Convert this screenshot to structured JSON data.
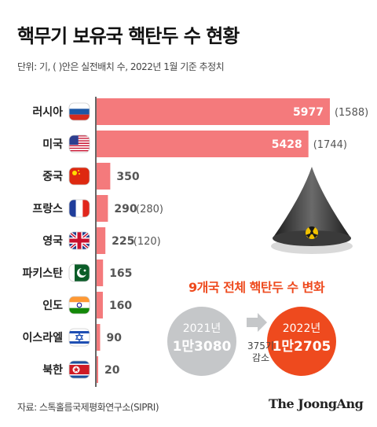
{
  "title": "핵무기 보유국 핵탄두 수 현황",
  "subtitle": "단위: 기, ( )안은 실전배치 수, 2022년 1월 기준 추정치",
  "chart_data": {
    "type": "bar",
    "orientation": "horizontal",
    "categories": [
      "러시아",
      "미국",
      "중국",
      "프랑스",
      "영국",
      "파키스탄",
      "인도",
      "이스라엘",
      "북한"
    ],
    "values": [
      5977,
      5428,
      350,
      290,
      225,
      165,
      160,
      90,
      20
    ],
    "value_labels": [
      "5977",
      "5428",
      "350",
      "290",
      "225",
      "165",
      "160",
      "90",
      "20"
    ],
    "deployed_labels": [
      "(1588)",
      "(1744)",
      "",
      "(280)",
      "(120)",
      "",
      "",
      "",
      ""
    ],
    "flags": [
      "russia-flag-icon",
      "usa-flag-icon",
      "china-flag-icon",
      "france-flag-icon",
      "uk-flag-icon",
      "pakistan-flag-icon",
      "india-flag-icon",
      "israel-flag-icon",
      "north-korea-flag-icon"
    ],
    "xlim": [
      0,
      6400
    ],
    "bar_color": "#f47a7c",
    "axis_color": "#333333"
  },
  "totals": {
    "heading": "9개국 전체 핵탄두 수 변화",
    "year_2021_label": "2021년",
    "year_2021_value": "1만3080",
    "year_2022_label": "2022년",
    "year_2022_value": "1만2705",
    "change_amount": "375기",
    "change_word": "감소",
    "color_2021": "#c5c7c9",
    "color_2022": "#ee4a1e"
  },
  "source": "자료: 스톡홀름국제평화연구소(SIPRI)",
  "brand": "The JoongAng"
}
